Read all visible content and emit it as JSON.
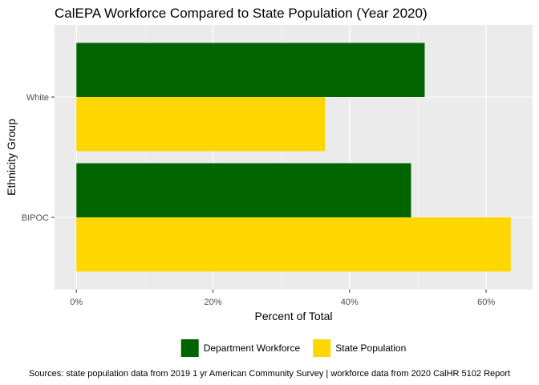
{
  "chart_data": {
    "type": "bar",
    "orientation": "horizontal",
    "title": "CalEPA Workforce Compared to State Population (Year 2020)",
    "xlabel": "Percent of Total",
    "ylabel": "Ethnicity Group",
    "categories": [
      "BIPOC",
      "White"
    ],
    "series": [
      {
        "name": "Department Workforce",
        "color": "#006400",
        "values": [
          49,
          51
        ]
      },
      {
        "name": "State Population",
        "color": "#FFD700",
        "values": [
          63.6,
          36.4
        ]
      }
    ],
    "xlim": [
      -3.2,
      66.8
    ],
    "xticks": [
      0,
      20,
      40,
      60
    ],
    "xtick_labels": [
      "0%",
      "20%",
      "40%",
      "60%"
    ],
    "grid": true,
    "legend_position": "bottom",
    "caption": "Sources: state population data from 2019 1 yr American Community Survey  |  workforce data from 2020 CalHR 5102 Report"
  }
}
